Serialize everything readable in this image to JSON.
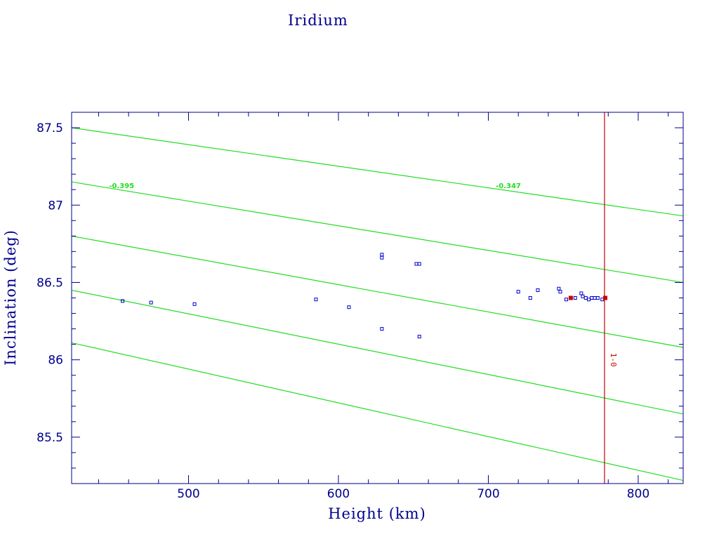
{
  "colors": {
    "axis": "#00008b",
    "point": "#0000cc",
    "highlight": "#cc0000",
    "contour": "#22dd22",
    "vline": "#cc0000"
  },
  "chart_data": {
    "type": "scatter",
    "title": "Iridium",
    "xlabel": "Height (km)",
    "ylabel": "Inclination (deg)",
    "xlim": [
      422,
      830
    ],
    "ylim": [
      85.2,
      87.6
    ],
    "xticks": [
      500,
      600,
      700,
      800
    ],
    "xtick_labels": [
      "500",
      "600",
      "700",
      "800"
    ],
    "yticks": [
      85.5,
      86,
      86.5,
      87,
      87.5
    ],
    "ytick_labels": [
      "85.5",
      "86",
      "86.5",
      "87",
      "87.5"
    ],
    "grid": false,
    "points": [
      {
        "x": 456,
        "y": 86.38
      },
      {
        "x": 475,
        "y": 86.37
      },
      {
        "x": 504,
        "y": 86.36
      },
      {
        "x": 585,
        "y": 86.39
      },
      {
        "x": 607,
        "y": 86.34
      },
      {
        "x": 629,
        "y": 86.68
      },
      {
        "x": 629,
        "y": 86.66
      },
      {
        "x": 629,
        "y": 86.2
      },
      {
        "x": 652,
        "y": 86.62
      },
      {
        "x": 654,
        "y": 86.62
      },
      {
        "x": 654,
        "y": 86.15
      },
      {
        "x": 720,
        "y": 86.44
      },
      {
        "x": 728,
        "y": 86.4
      },
      {
        "x": 733,
        "y": 86.45
      },
      {
        "x": 747,
        "y": 86.46
      },
      {
        "x": 748,
        "y": 86.44
      },
      {
        "x": 752,
        "y": 86.39
      },
      {
        "x": 755,
        "y": 86.4
      },
      {
        "x": 758,
        "y": 86.4
      },
      {
        "x": 762,
        "y": 86.43
      },
      {
        "x": 763,
        "y": 86.41
      },
      {
        "x": 765,
        "y": 86.4
      },
      {
        "x": 767,
        "y": 86.39
      },
      {
        "x": 769,
        "y": 86.4
      },
      {
        "x": 771,
        "y": 86.4
      },
      {
        "x": 773,
        "y": 86.4
      },
      {
        "x": 776,
        "y": 86.39
      }
    ],
    "highlighted_points": [
      {
        "x": 755,
        "y": 86.4
      },
      {
        "x": 778,
        "y": 86.4
      }
    ],
    "contour_lines": [
      {
        "x1": 422,
        "y1": 87.5,
        "x2": 830,
        "y2": 86.93
      },
      {
        "x1": 422,
        "y1": 87.15,
        "x2": 830,
        "y2": 86.5
      },
      {
        "x1": 422,
        "y1": 86.8,
        "x2": 830,
        "y2": 86.08
      },
      {
        "x1": 422,
        "y1": 86.45,
        "x2": 830,
        "y2": 85.65
      },
      {
        "x1": 422,
        "y1": 86.11,
        "x2": 830,
        "y2": 85.22
      }
    ],
    "contour_labels": [
      {
        "text": "-0.395",
        "x": 447,
        "y": 87.11
      },
      {
        "text": "-0.347",
        "x": 705,
        "y": 87.11
      }
    ],
    "vline": {
      "x": 777.5,
      "label": "1-0",
      "label_y": 86.0
    }
  }
}
